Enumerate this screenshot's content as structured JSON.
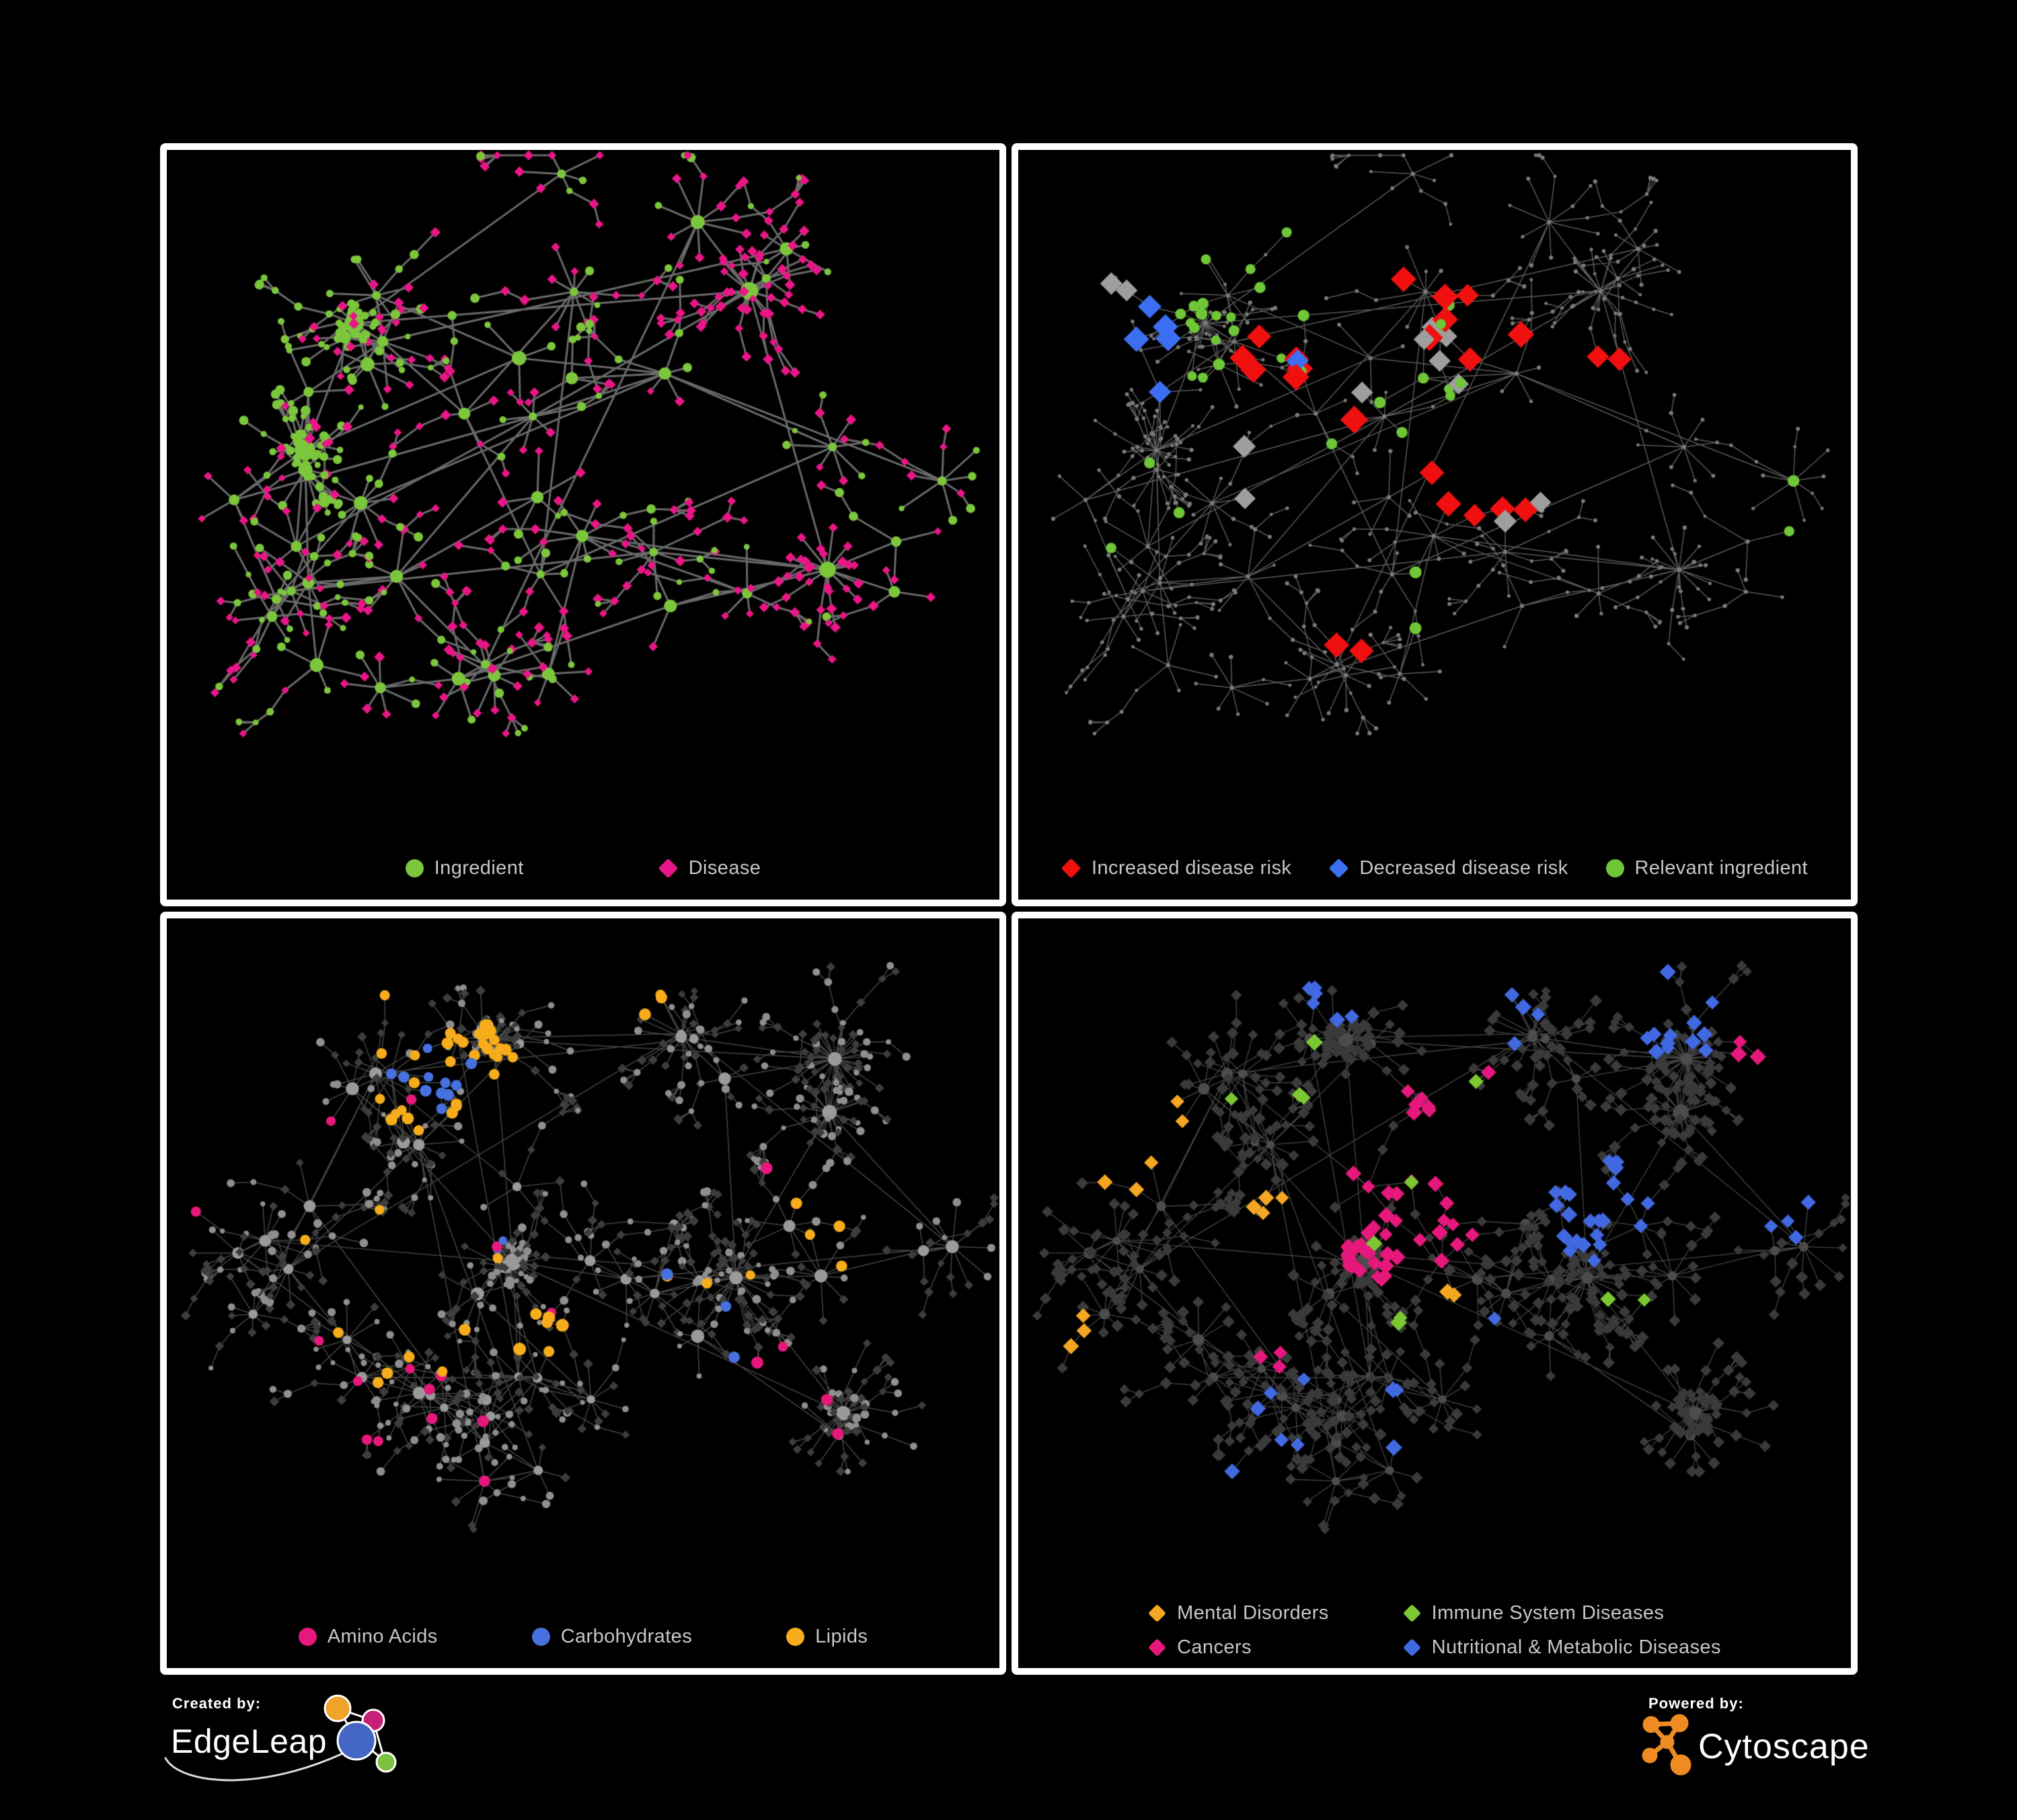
{
  "background": "#000000",
  "panel_border": "#FFFFFF",
  "legend_text_color": "#C7C7C7",
  "panels": [
    {
      "name": "ingredient-disease-network",
      "legend": [
        {
          "label": "Ingredient",
          "shape": "circle",
          "color": "#7CC63C"
        },
        {
          "label": "Disease",
          "shape": "diamond",
          "color": "#E81686"
        }
      ],
      "style": {
        "edge": "#6F6F6F",
        "edge_width": 3,
        "edge_alpha": 0.95
      }
    },
    {
      "name": "disease-risk-network",
      "legend": [
        {
          "label": "Increased disease risk",
          "shape": "diamond",
          "color": "#F01010"
        },
        {
          "label": "Decreased disease risk",
          "shape": "diamond",
          "color": "#3B6EF0"
        },
        {
          "label": "Relevant ingredient",
          "shape": "circle",
          "color": "#6FC636"
        }
      ],
      "style": {
        "edge": "#646464",
        "edge_width": 1.5,
        "edge_alpha": 0.9,
        "base_node": "#7A7A7A",
        "neutral_diamond": "#9E9E9E"
      }
    },
    {
      "name": "macronutrient-network",
      "legend": [
        {
          "label": "Amino Acids",
          "shape": "circle",
          "color": "#E6187C"
        },
        {
          "label": "Carbohydrates",
          "shape": "circle",
          "color": "#4671DE"
        },
        {
          "label": "Lipids",
          "shape": "circle",
          "color": "#F7AC1B"
        }
      ],
      "style": {
        "edge": "#7E7E7E",
        "edge_width": 1.5,
        "edge_alpha": 0.55,
        "hub_node": "#9A9A9A",
        "circle_node": "#8F8F8F",
        "diamond_node": "#3D3D3D"
      }
    },
    {
      "name": "disease-category-network",
      "legend": [
        {
          "label": "Mental Disorders",
          "shape": "diamond",
          "color": "#F5A623"
        },
        {
          "label": "Immune System Diseases",
          "shape": "diamond",
          "color": "#7CC832"
        },
        {
          "label": "Cancers",
          "shape": "diamond",
          "color": "#E6187C"
        },
        {
          "label": "Nutritional & Metabolic Diseases",
          "shape": "diamond",
          "color": "#4169E1"
        }
      ],
      "style": {
        "edge": "#8A8A8A",
        "edge_width": 1.3,
        "edge_alpha": 0.5,
        "hub_node": "#4C4C4C",
        "diamond_node": "#3A3A3A"
      }
    }
  ],
  "footer": {
    "created_by": {
      "label": "Created by:",
      "brand": "EdgeLeap",
      "logo_colors": {
        "orange": "#F0A32A",
        "magenta": "#C52277",
        "blue": "#4467C4",
        "green": "#7DC242",
        "outline": "#FFFFFF"
      }
    },
    "powered_by": {
      "label": "Powered by:",
      "brand": "Cytoscape",
      "logo_color": "#EE8B22"
    }
  }
}
